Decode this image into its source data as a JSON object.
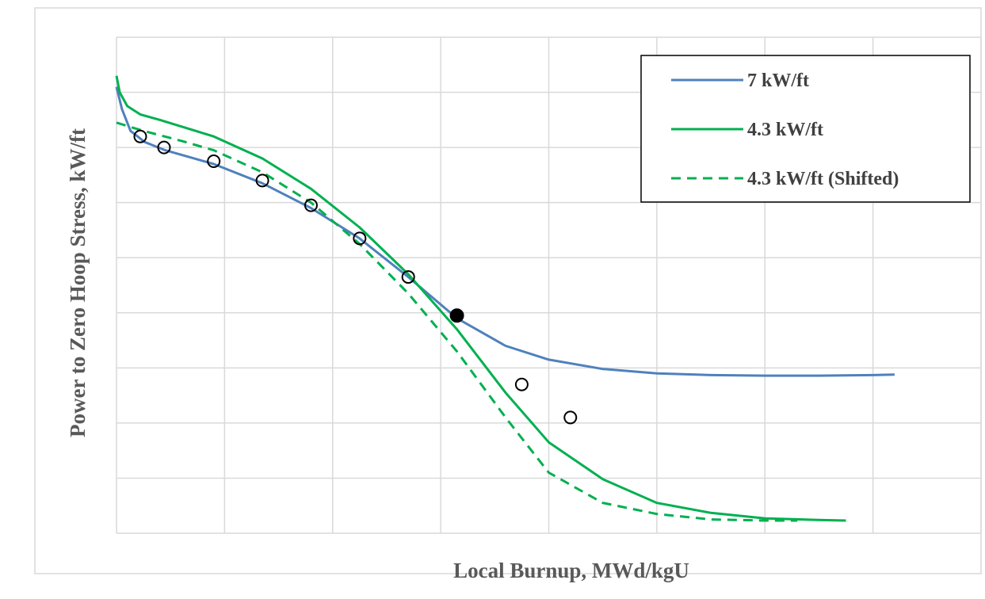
{
  "chart_data": {
    "type": "line",
    "xlabel": "Local Burnup, MWd/kgU",
    "ylabel": "Power to Zero Hoop Stress, kW/ft",
    "xlim": [
      0,
      80
    ],
    "ylim": [
      0,
      9
    ],
    "grid": true,
    "tick_labels_shown": false,
    "legend_position": "top-right",
    "series": [
      {
        "name": "7 kW/ft",
        "color": "#4F81BD",
        "dash": "solid",
        "x": [
          0,
          0.5,
          1.3,
          2.6,
          4.5,
          9,
          13.5,
          18,
          22.5,
          27,
          31.5,
          36,
          40,
          45,
          50,
          55,
          60,
          65,
          70,
          72
        ],
        "y": [
          8.1,
          7.7,
          7.3,
          7.1,
          6.95,
          6.7,
          6.35,
          5.9,
          5.35,
          4.65,
          3.9,
          3.4,
          3.15,
          2.98,
          2.9,
          2.87,
          2.86,
          2.86,
          2.87,
          2.88
        ]
      },
      {
        "name": "4.3 kW/ft",
        "color": "#00B050",
        "dash": "solid",
        "x": [
          0,
          0.3,
          1,
          2.2,
          4,
          9,
          13.5,
          18,
          22.5,
          27,
          31.5,
          36,
          40,
          45,
          50,
          55,
          60,
          65,
          67.5
        ],
        "y": [
          8.3,
          8.0,
          7.75,
          7.6,
          7.5,
          7.2,
          6.8,
          6.25,
          5.55,
          4.7,
          3.7,
          2.55,
          1.65,
          0.98,
          0.55,
          0.37,
          0.27,
          0.24,
          0.23
        ]
      },
      {
        "name": "4.3 kW/ft (Shifted)",
        "color": "#00B050",
        "dash": "dashed",
        "x": [
          0,
          2.5,
          6,
          9,
          13.5,
          18,
          22.5,
          27,
          31.5,
          36,
          40,
          45,
          50,
          55,
          60,
          63
        ],
        "y": [
          7.45,
          7.3,
          7.12,
          6.95,
          6.55,
          6.0,
          5.25,
          4.35,
          3.3,
          2.1,
          1.1,
          0.55,
          0.35,
          0.25,
          0.23,
          0.23
        ]
      },
      {
        "name": "",
        "type": "scatter",
        "marker": "open-circle",
        "x": [
          2.2,
          4.4,
          9,
          13.5,
          18,
          22.5,
          27,
          37.5,
          42
        ],
        "y": [
          7.2,
          7.0,
          6.75,
          6.4,
          5.95,
          5.35,
          4.65,
          2.7,
          2.1
        ]
      },
      {
        "name": "",
        "type": "scatter",
        "marker": "filled-circle",
        "x": [
          31.5
        ],
        "y": [
          3.95
        ]
      }
    ]
  }
}
